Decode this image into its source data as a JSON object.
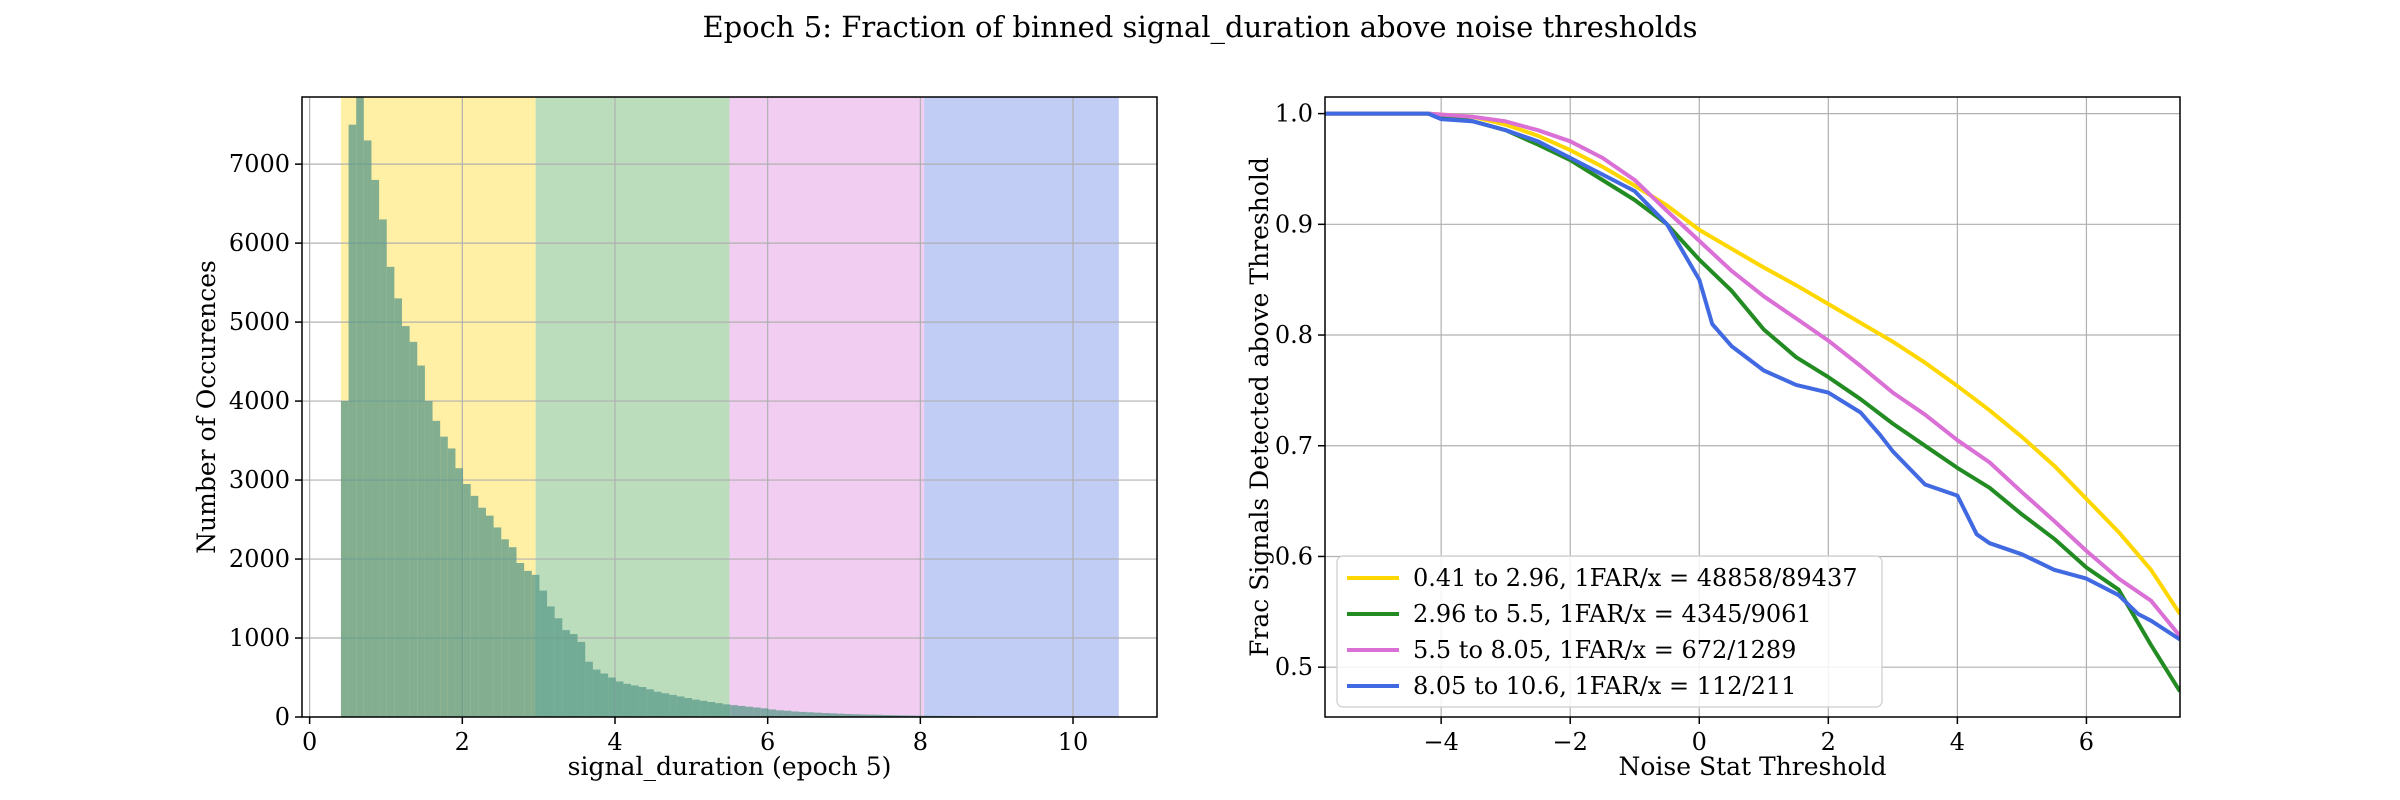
{
  "figure": {
    "title": "Epoch 5: Fraction of binned signal_duration above noise thresholds"
  },
  "chart_data": [
    {
      "type": "bar",
      "subtype": "histogram",
      "xlabel": "signal_duration (epoch 5)",
      "ylabel": "Number of Occurences",
      "xlim": [
        -0.1,
        11.1
      ],
      "ylim": [
        0,
        7850
      ],
      "xticks": [
        0,
        2,
        4,
        6,
        8,
        10
      ],
      "yticks": [
        0,
        1000,
        2000,
        3000,
        4000,
        5000,
        6000,
        7000
      ],
      "grid": true,
      "bin_start": 0.41,
      "bin_width": 0.1,
      "bar_color": "#5a9a8a",
      "values": [
        4000,
        7500,
        7850,
        7300,
        6800,
        6300,
        5700,
        5300,
        4950,
        4750,
        4450,
        4000,
        3750,
        3550,
        3400,
        3150,
        2950,
        2800,
        2650,
        2550,
        2400,
        2250,
        2150,
        1950,
        1850,
        1800,
        1600,
        1400,
        1250,
        1100,
        1050,
        950,
        700,
        600,
        550,
        500,
        450,
        420,
        400,
        380,
        350,
        320,
        300,
        280,
        260,
        240,
        220,
        205,
        190,
        175,
        160,
        150,
        140,
        130,
        120,
        110,
        95,
        85,
        80,
        70,
        65,
        60,
        55,
        50,
        46,
        42,
        38,
        35,
        32,
        30,
        28,
        25,
        23,
        21,
        19,
        17,
        16,
        15,
        14,
        13,
        12,
        10,
        9,
        8,
        7,
        6,
        6,
        5,
        5,
        4,
        4,
        4,
        3,
        3,
        3,
        3,
        2,
        2,
        2,
        2,
        1
      ],
      "bands": [
        {
          "from": 0.41,
          "to": 2.96,
          "color": "#ffe97f"
        },
        {
          "from": 2.96,
          "to": 5.5,
          "color": "#9fcf9f"
        },
        {
          "from": 5.5,
          "to": 8.05,
          "color": "#ebb8eb"
        },
        {
          "from": 8.05,
          "to": 10.6,
          "color": "#a6b8ef"
        }
      ]
    },
    {
      "type": "line",
      "xlabel": "Noise Stat Threshold",
      "ylabel": "Frac Signals Detected above Threshold",
      "xlim": [
        -5.8,
        7.45
      ],
      "ylim": [
        0.455,
        1.015
      ],
      "xticks": [
        -4,
        -2,
        0,
        2,
        4,
        6
      ],
      "xtick_labels": [
        "−4",
        "−2",
        "0",
        "2",
        "4",
        "6"
      ],
      "yticks": [
        0.5,
        0.6,
        0.7,
        0.8,
        0.9,
        1.0
      ],
      "ytick_labels": [
        "0.5",
        "0.6",
        "0.7",
        "0.8",
        "0.9",
        "1.0"
      ],
      "grid": true,
      "legend_position": "lower-left",
      "series": [
        {
          "name": "0.41 to 2.96, 1FAR/x = 48858/89437",
          "color": "#ffd700",
          "points": [
            [
              -5.8,
              1.0
            ],
            [
              -4.2,
              1.0
            ],
            [
              -3.5,
              0.997
            ],
            [
              -3.0,
              0.99
            ],
            [
              -2.5,
              0.98
            ],
            [
              -2.0,
              0.967
            ],
            [
              -1.5,
              0.952
            ],
            [
              -1.0,
              0.935
            ],
            [
              -0.5,
              0.917
            ],
            [
              0.0,
              0.895
            ],
            [
              0.5,
              0.878
            ],
            [
              1.0,
              0.861
            ],
            [
              1.5,
              0.845
            ],
            [
              2.0,
              0.828
            ],
            [
              2.5,
              0.811
            ],
            [
              3.0,
              0.794
            ],
            [
              3.5,
              0.775
            ],
            [
              4.0,
              0.754
            ],
            [
              4.5,
              0.732
            ],
            [
              5.0,
              0.708
            ],
            [
              5.5,
              0.682
            ],
            [
              6.0,
              0.652
            ],
            [
              6.5,
              0.622
            ],
            [
              7.0,
              0.588
            ],
            [
              7.45,
              0.548
            ]
          ]
        },
        {
          "name": "2.96 to 5.5, 1FAR/x = 4345/9061",
          "color": "#228b22",
          "points": [
            [
              -5.8,
              1.0
            ],
            [
              -4.2,
              1.0
            ],
            [
              -3.5,
              0.993
            ],
            [
              -3.0,
              0.985
            ],
            [
              -2.5,
              0.972
            ],
            [
              -2.0,
              0.958
            ],
            [
              -1.5,
              0.94
            ],
            [
              -1.0,
              0.922
            ],
            [
              -0.5,
              0.9
            ],
            [
              0.0,
              0.868
            ],
            [
              0.5,
              0.84
            ],
            [
              1.0,
              0.805
            ],
            [
              1.5,
              0.78
            ],
            [
              2.0,
              0.762
            ],
            [
              2.5,
              0.742
            ],
            [
              3.0,
              0.72
            ],
            [
              3.5,
              0.7
            ],
            [
              4.0,
              0.68
            ],
            [
              4.5,
              0.662
            ],
            [
              5.0,
              0.638
            ],
            [
              5.5,
              0.616
            ],
            [
              6.0,
              0.59
            ],
            [
              6.5,
              0.57
            ],
            [
              7.0,
              0.52
            ],
            [
              7.45,
              0.478
            ]
          ]
        },
        {
          "name": "5.5 to 8.05, 1FAR/x = 672/1289",
          "color": "#da70d6",
          "points": [
            [
              -5.8,
              1.0
            ],
            [
              -4.2,
              1.0
            ],
            [
              -3.5,
              0.997
            ],
            [
              -3.0,
              0.993
            ],
            [
              -2.5,
              0.985
            ],
            [
              -2.0,
              0.975
            ],
            [
              -1.5,
              0.96
            ],
            [
              -1.0,
              0.94
            ],
            [
              -0.5,
              0.912
            ],
            [
              0.0,
              0.885
            ],
            [
              0.5,
              0.858
            ],
            [
              1.0,
              0.835
            ],
            [
              1.5,
              0.815
            ],
            [
              2.0,
              0.795
            ],
            [
              2.5,
              0.772
            ],
            [
              3.0,
              0.748
            ],
            [
              3.5,
              0.728
            ],
            [
              4.0,
              0.705
            ],
            [
              4.5,
              0.685
            ],
            [
              5.0,
              0.658
            ],
            [
              5.5,
              0.632
            ],
            [
              6.0,
              0.605
            ],
            [
              6.5,
              0.58
            ],
            [
              7.0,
              0.56
            ],
            [
              7.45,
              0.528
            ]
          ]
        },
        {
          "name": "8.05 to 10.6, 1FAR/x = 112/211",
          "color": "#4169e1",
          "points": [
            [
              -5.8,
              1.0
            ],
            [
              -4.2,
              1.0
            ],
            [
              -4.0,
              0.995
            ],
            [
              -3.5,
              0.993
            ],
            [
              -3.0,
              0.985
            ],
            [
              -2.5,
              0.975
            ],
            [
              -2.0,
              0.96
            ],
            [
              -1.5,
              0.945
            ],
            [
              -1.0,
              0.93
            ],
            [
              -0.5,
              0.9
            ],
            [
              0.0,
              0.85
            ],
            [
              0.2,
              0.81
            ],
            [
              0.5,
              0.79
            ],
            [
              1.0,
              0.768
            ],
            [
              1.5,
              0.755
            ],
            [
              2.0,
              0.748
            ],
            [
              2.5,
              0.73
            ],
            [
              2.8,
              0.71
            ],
            [
              3.0,
              0.695
            ],
            [
              3.5,
              0.665
            ],
            [
              4.0,
              0.655
            ],
            [
              4.3,
              0.62
            ],
            [
              4.5,
              0.612
            ],
            [
              5.0,
              0.602
            ],
            [
              5.5,
              0.588
            ],
            [
              6.0,
              0.58
            ],
            [
              6.5,
              0.565
            ],
            [
              6.8,
              0.548
            ],
            [
              7.0,
              0.542
            ],
            [
              7.45,
              0.525
            ]
          ]
        }
      ]
    }
  ]
}
